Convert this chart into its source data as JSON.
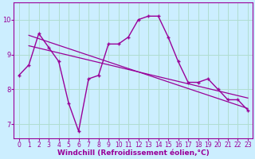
{
  "xlabel": "Windchill (Refroidissement éolien,°C)",
  "bg_color": "#cceeff",
  "grid_color": "#b0ddd0",
  "line_color": "#990099",
  "x_ticks": [
    0,
    1,
    2,
    3,
    4,
    5,
    6,
    7,
    8,
    9,
    10,
    11,
    12,
    13,
    14,
    15,
    16,
    17,
    18,
    19,
    20,
    21,
    22,
    23
  ],
  "y_ticks": [
    7,
    8,
    9,
    10
  ],
  "ylim": [
    6.6,
    10.5
  ],
  "xlim": [
    -0.5,
    23.5
  ],
  "series1": [
    8.4,
    8.7,
    9.6,
    9.2,
    8.8,
    7.6,
    6.8,
    8.3,
    8.4,
    9.3,
    9.3,
    9.5,
    10.0,
    10.1,
    10.1,
    9.5,
    8.8,
    8.2,
    8.2,
    8.3,
    8.0,
    7.7,
    7.7,
    7.4
  ],
  "series2_x": [
    1,
    23
  ],
  "series2_y": [
    9.55,
    7.45
  ],
  "series3_x": [
    1,
    23
  ],
  "series3_y": [
    9.25,
    7.75
  ],
  "tick_fontsize": 5.5,
  "xlabel_fontsize": 6.5
}
